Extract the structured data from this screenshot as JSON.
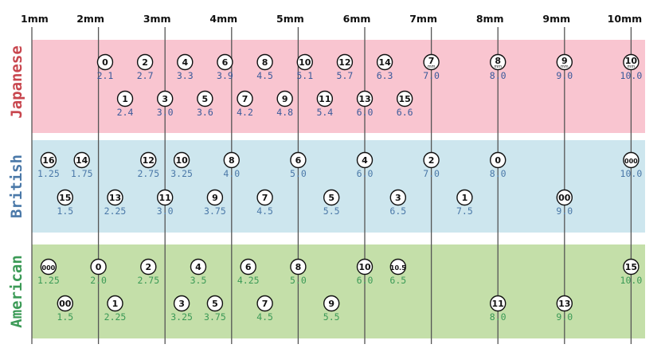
{
  "mm_labels": [
    "1mm",
    "2mm",
    "3mm",
    "4mm",
    "5mm",
    "6mm",
    "7mm",
    "8mm",
    "9mm",
    "10mm"
  ],
  "colors": {
    "japanese_band": "#f9c5d0",
    "british_band": "#cde6ee",
    "american_band": "#c4dfa9",
    "japanese_text": "#c8464e",
    "british_text": "#4a78a8",
    "american_text": "#3b9a56",
    "mm_value_text": "#3a5a9a"
  },
  "systems": [
    {
      "name": "Japanese",
      "rows": [
        [
          {
            "size": "0",
            "mm": "2.1"
          },
          {
            "size": "2",
            "mm": "2.7"
          },
          {
            "size": "4",
            "mm": "3.3"
          },
          {
            "size": "6",
            "mm": "3.9"
          },
          {
            "size": "8",
            "mm": "4.5"
          },
          {
            "size": "10",
            "mm": "5.1"
          },
          {
            "size": "12",
            "mm": "5.7"
          },
          {
            "size": "14",
            "mm": "6.3"
          },
          {
            "size": "7",
            "mm": "7.0",
            "sub": "mm"
          },
          {
            "size": "8",
            "mm": "8.0",
            "sub": "mm"
          },
          {
            "size": "9",
            "mm": "9.0",
            "sub": "mm"
          },
          {
            "size": "10",
            "mm": "10.0",
            "sub": "mm"
          }
        ],
        [
          {
            "size": "1",
            "mm": "2.4"
          },
          {
            "size": "3",
            "mm": "3.0"
          },
          {
            "size": "5",
            "mm": "3.6"
          },
          {
            "size": "7",
            "mm": "4.2"
          },
          {
            "size": "9",
            "mm": "4.8"
          },
          {
            "size": "11",
            "mm": "5.4"
          },
          {
            "size": "13",
            "mm": "6.0"
          },
          {
            "size": "15",
            "mm": "6.6"
          }
        ]
      ]
    },
    {
      "name": "British",
      "rows": [
        [
          {
            "size": "16",
            "mm": "1.25"
          },
          {
            "size": "14",
            "mm": "1.75"
          },
          {
            "size": "12",
            "mm": "2.75"
          },
          {
            "size": "10",
            "mm": "3.25"
          },
          {
            "size": "8",
            "mm": "4.0"
          },
          {
            "size": "6",
            "mm": "5.0"
          },
          {
            "size": "4",
            "mm": "6.0"
          },
          {
            "size": "2",
            "mm": "7.0"
          },
          {
            "size": "0",
            "mm": "8.0"
          },
          {
            "size": "000",
            "mm": "10.0"
          }
        ],
        [
          {
            "size": "15",
            "mm": "1.5"
          },
          {
            "size": "13",
            "mm": "2.25"
          },
          {
            "size": "11",
            "mm": "3.0"
          },
          {
            "size": "9",
            "mm": "3.75"
          },
          {
            "size": "7",
            "mm": "4.5"
          },
          {
            "size": "5",
            "mm": "5.5"
          },
          {
            "size": "3",
            "mm": "6.5"
          },
          {
            "size": "1",
            "mm": "7.5"
          },
          {
            "size": "00",
            "mm": "9.0"
          }
        ]
      ]
    },
    {
      "name": "American",
      "rows": [
        [
          {
            "size": "000",
            "mm": "1.25"
          },
          {
            "size": "0",
            "mm": "2.0"
          },
          {
            "size": "2",
            "mm": "2.75"
          },
          {
            "size": "4",
            "mm": "3.5"
          },
          {
            "size": "6",
            "mm": "4.25"
          },
          {
            "size": "8",
            "mm": "5.0"
          },
          {
            "size": "10",
            "mm": "6.0"
          },
          {
            "size": "10.5",
            "mm": "6.5"
          },
          {
            "size": "15",
            "mm": "10.0"
          }
        ],
        [
          {
            "size": "00",
            "mm": "1.5"
          },
          {
            "size": "1",
            "mm": "2.25"
          },
          {
            "size": "3",
            "mm": "3.25"
          },
          {
            "size": "5",
            "mm": "3.75"
          },
          {
            "size": "7",
            "mm": "4.5"
          },
          {
            "size": "9",
            "mm": "5.5"
          },
          {
            "size": "11",
            "mm": "8.0"
          },
          {
            "size": "13",
            "mm": "9.0"
          }
        ]
      ]
    }
  ]
}
